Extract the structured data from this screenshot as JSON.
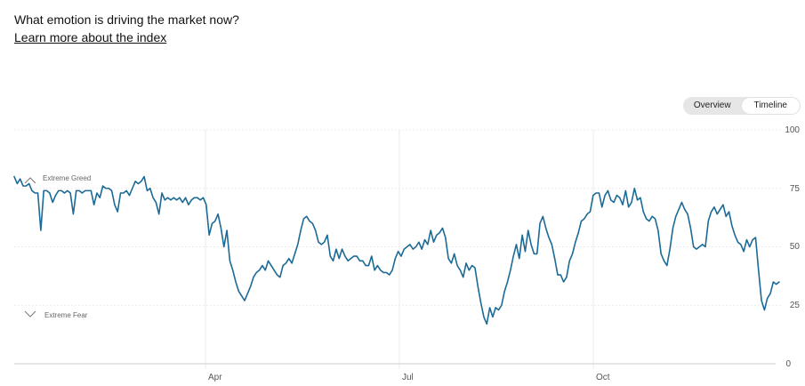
{
  "header": {
    "question": "What emotion is driving the market now?",
    "learn_link": "Learn more about the index"
  },
  "toggle": {
    "overview_label": "Overview",
    "timeline_label": "Timeline",
    "selected": "Timeline"
  },
  "colors": {
    "line": "#1c6a96",
    "grid": "#ebebeb",
    "axis": "#cccccc"
  },
  "chart_data": {
    "type": "line",
    "title": "",
    "xlabel": "",
    "ylabel": "",
    "ylim": [
      0,
      100
    ],
    "y_ticks": [
      "100",
      "75",
      "50",
      "25",
      "0"
    ],
    "x_ticks": [
      "Apr",
      "Jul",
      "Oct"
    ],
    "zone_labels": {
      "greed": "Extreme Greed",
      "fear": "Extreme Fear"
    },
    "grid": true,
    "series": [
      {
        "values": [
          80,
          77,
          79,
          76,
          76,
          77,
          74,
          73,
          73,
          57,
          74,
          74,
          73,
          69,
          72,
          74,
          74,
          73,
          74,
          73,
          64,
          74,
          74,
          73,
          74,
          74,
          74,
          68,
          73,
          71,
          76,
          75,
          75,
          74,
          68,
          65,
          73,
          73,
          74,
          72,
          75,
          78,
          77,
          78,
          80,
          74,
          75,
          71,
          69,
          64,
          73,
          70,
          71,
          70,
          71,
          70,
          71,
          69,
          71,
          68,
          70,
          71,
          71,
          70,
          71,
          68,
          55,
          60,
          61,
          64,
          58,
          50,
          57,
          44,
          40,
          35,
          31,
          29,
          27,
          30,
          33,
          37,
          39,
          40,
          42,
          40,
          44,
          42,
          40,
          38,
          37,
          42,
          43,
          45,
          43,
          47,
          51,
          57,
          62,
          63,
          61,
          60,
          57,
          52,
          51,
          52,
          55,
          46,
          44,
          49,
          45,
          49,
          46,
          44,
          45,
          46,
          46,
          44,
          44,
          42,
          42,
          46,
          40,
          42,
          40,
          39,
          39,
          38,
          40,
          45,
          48,
          46,
          49,
          50,
          51,
          49,
          50,
          52,
          49,
          53,
          51,
          57,
          52,
          55,
          56,
          58,
          54,
          45,
          43,
          47,
          42,
          40,
          37,
          43,
          40,
          42,
          41,
          33,
          26,
          20,
          17,
          24,
          20,
          24,
          23,
          25,
          31,
          35,
          40,
          46,
          51,
          45,
          55,
          48,
          57,
          51,
          47,
          47,
          60,
          63,
          58,
          54,
          51,
          45,
          38,
          38,
          35,
          37,
          44,
          47,
          52,
          56,
          61,
          62,
          64,
          65,
          72,
          73,
          73,
          67,
          72,
          74,
          70,
          69,
          72,
          71,
          68,
          74,
          67,
          69,
          75,
          70,
          71,
          65,
          62,
          61,
          63,
          62,
          57,
          47,
          44,
          42,
          49,
          58,
          63,
          66,
          69,
          66,
          64,
          58,
          50,
          49,
          50,
          51,
          50,
          61,
          65,
          67,
          64,
          66,
          68,
          63,
          65,
          59,
          55,
          52,
          51,
          48,
          53,
          50,
          53,
          54,
          40,
          27,
          23,
          28,
          30,
          35,
          34,
          35
        ]
      }
    ]
  }
}
